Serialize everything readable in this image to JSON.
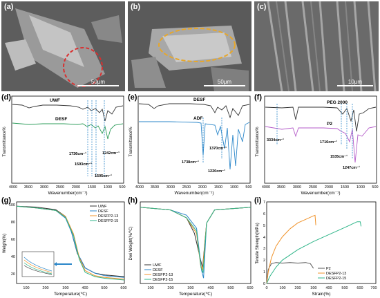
{
  "sem": [
    {
      "label": "(a)",
      "scale": "50μm",
      "highlight_color": "#d92f2f"
    },
    {
      "label": "(b)",
      "scale": "50μm",
      "highlight_color": "#e7a72b"
    },
    {
      "label": "(c)",
      "scale": "10μm"
    }
  ],
  "ftir_d": {
    "label": "(d)",
    "ylabel": "Transmittance%",
    "xlabel": "Wavenumber(cm⁻¹)",
    "ticks": [
      "4000",
      "3500",
      "3000",
      "2500",
      "2000",
      "1500",
      "1000",
      "500"
    ],
    "series": [
      {
        "name": "UWF",
        "color": "#333333"
      },
      {
        "name": "DESF",
        "color": "#2c9c5a"
      }
    ],
    "annotations": [
      "1736cm⁻¹",
      "1593cm⁻¹",
      "1505cm⁻¹",
      "1242cm⁻¹"
    ]
  },
  "ftir_e": {
    "label": "(e)",
    "ylabel": "Transmittance%",
    "xlabel": "Wavenumber(cm⁻¹)",
    "ticks": [
      "4000",
      "3500",
      "3000",
      "2500",
      "2000",
      "1500",
      "1000",
      "500"
    ],
    "series": [
      {
        "name": "DESF",
        "color": "#333333"
      },
      {
        "name": "ADF",
        "color": "#2a86c9"
      }
    ],
    "annotations": [
      "1370cm⁻¹",
      "1738cm⁻¹",
      "1220cm⁻¹"
    ]
  },
  "ftir_f": {
    "label": "(f)",
    "ylabel": "Transmittance%",
    "xlabel": "Wavenumber(cm⁻¹)",
    "ticks": [
      "4000",
      "3500",
      "3000",
      "2500",
      "2000",
      "1500",
      "1000",
      "500"
    ],
    "series": [
      {
        "name": "PEG 2000",
        "color": "#333333"
      },
      {
        "name": "P2",
        "color": "#b35ac8"
      }
    ],
    "annotations": [
      "3334cm⁻¹",
      "1716cm⁻¹",
      "1535cm⁻¹",
      "1247cm⁻¹"
    ]
  },
  "tga": {
    "label": "(g)",
    "ylabel": "Weight(%)",
    "xlabel": "Temperature(℃)",
    "xticks": [
      "100",
      "200",
      "300",
      "400",
      "500",
      "600"
    ],
    "yticks": [
      "20",
      "40",
      "60",
      "80",
      "100"
    ],
    "legend": [
      "UWF",
      "DESF",
      "DESFP2-13",
      "DESFP2-15"
    ]
  },
  "dtg": {
    "label": "(h)",
    "ylabel": "Deri Weight(%/℃)",
    "xlabel": "Temperature(℃)",
    "xticks": [
      "100",
      "200",
      "300",
      "400",
      "500",
      "600"
    ],
    "legend": [
      "UWF",
      "DESF",
      "DESFP2-13",
      "DESFP2-15"
    ]
  },
  "tensile": {
    "label": "(i)",
    "ylabel": "Tensile Strength(MPa)",
    "xlabel": "Strain(%)",
    "xticks": [
      "0",
      "100",
      "200",
      "300",
      "400",
      "500",
      "600",
      "700"
    ],
    "yticks": [
      "0",
      "1",
      "2",
      "3",
      "4",
      "5",
      "6",
      "7"
    ],
    "legend": [
      "P2",
      "DESFP2-13",
      "DESFP2-15"
    ]
  },
  "colors": {
    "uwf": "#333333",
    "desf": "#2a86c9",
    "p13": "#f0932b",
    "p15": "#2fb589",
    "p2": "#555555"
  },
  "chart_data": [
    {
      "type": "line",
      "title": "",
      "xlabel": "Temperature(℃)",
      "ylabel": "Weight(%)",
      "xlim": [
        50,
        600
      ],
      "ylim": [
        10,
        105
      ],
      "series": [
        {
          "name": "UWF",
          "x": [
            50,
            150,
            250,
            300,
            330,
            360,
            400,
            450,
            500,
            600
          ],
          "y": [
            100,
            99,
            96,
            88,
            70,
            45,
            28,
            22,
            20,
            18
          ]
        },
        {
          "name": "DESF",
          "x": [
            50,
            150,
            250,
            300,
            330,
            360,
            400,
            450,
            500,
            600
          ],
          "y": [
            100,
            98,
            95,
            86,
            70,
            46,
            28,
            22,
            19,
            17
          ]
        },
        {
          "name": "DESFP2-13",
          "x": [
            50,
            150,
            250,
            300,
            340,
            370,
            400,
            450,
            500,
            600
          ],
          "y": [
            100,
            98,
            95,
            88,
            68,
            40,
            25,
            19,
            17,
            15
          ]
        },
        {
          "name": "DESFP2-15",
          "x": [
            50,
            150,
            250,
            300,
            340,
            370,
            400,
            450,
            500,
            600
          ],
          "y": [
            100,
            98,
            95,
            87,
            66,
            38,
            23,
            18,
            16,
            14
          ]
        }
      ]
    },
    {
      "type": "line",
      "title": "",
      "xlabel": "Temperature(℃)",
      "ylabel": "Deri Weight(%/℃)",
      "xlim": [
        50,
        600
      ],
      "series": [
        {
          "name": "UWF",
          "x": [
            50,
            200,
            280,
            320,
            350,
            360,
            380,
            420,
            600
          ],
          "y": [
            0,
            -0.05,
            -0.2,
            -0.5,
            -1.0,
            -1.15,
            -0.3,
            -0.05,
            0
          ]
        },
        {
          "name": "DESF",
          "x": [
            50,
            200,
            280,
            330,
            355,
            365,
            380,
            420,
            600
          ],
          "y": [
            0,
            -0.05,
            -0.15,
            -0.4,
            -1.2,
            -1.35,
            -0.3,
            -0.05,
            0
          ]
        },
        {
          "name": "DESFP2-13",
          "x": [
            50,
            200,
            280,
            330,
            350,
            360,
            380,
            420,
            600
          ],
          "y": [
            0,
            -0.05,
            -0.2,
            -0.5,
            -1.1,
            -1.2,
            -0.3,
            -0.05,
            0
          ]
        },
        {
          "name": "DESFP2-15",
          "x": [
            50,
            200,
            280,
            330,
            352,
            362,
            380,
            420,
            600
          ],
          "y": [
            0,
            -0.05,
            -0.2,
            -0.45,
            -1.15,
            -1.25,
            -0.3,
            -0.05,
            0
          ]
        }
      ]
    },
    {
      "type": "line",
      "title": "",
      "xlabel": "Strain(%)",
      "ylabel": "Tensile Strength(MPa)",
      "xlim": [
        0,
        700
      ],
      "ylim": [
        0,
        7
      ],
      "series": [
        {
          "name": "P2",
          "x": [
            0,
            10,
            30,
            60,
            100,
            150,
            200,
            250,
            280,
            300
          ],
          "y": [
            0,
            1.2,
            1.7,
            1.8,
            1.75,
            1.8,
            1.75,
            1.8,
            1.7,
            1.3
          ]
        },
        {
          "name": "DESFP2-13",
          "x": [
            0,
            10,
            30,
            60,
            100,
            150,
            200,
            250,
            300,
            310,
            315
          ],
          "y": [
            0,
            1.0,
            2.2,
            3.2,
            4.0,
            4.7,
            5.2,
            5.5,
            5.8,
            5.85,
            5.0
          ]
        },
        {
          "name": "DESFP2-15",
          "x": [
            0,
            20,
            60,
            100,
            200,
            300,
            400,
            500,
            580,
            600,
            605
          ],
          "y": [
            0,
            0.6,
            1.4,
            2.0,
            2.9,
            3.6,
            4.2,
            4.8,
            5.3,
            5.3,
            4.9
          ]
        }
      ]
    }
  ]
}
